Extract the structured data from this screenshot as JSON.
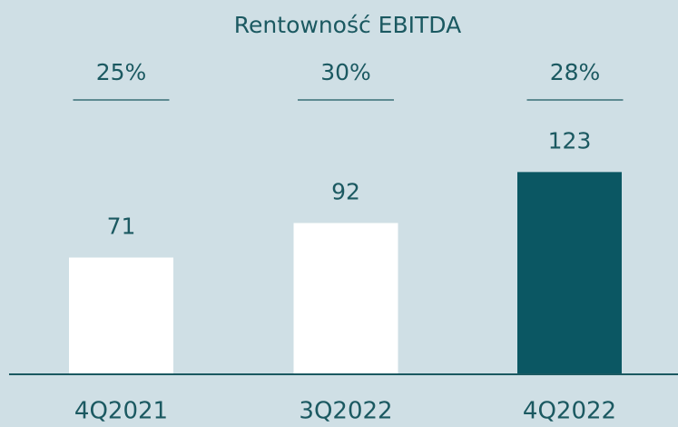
{
  "chart_data": {
    "type": "bar",
    "title": "Rentowność EBITDA",
    "categories": [
      "4Q2021",
      "3Q2022",
      "4Q2022"
    ],
    "values": [
      71,
      92,
      123
    ],
    "colors": [
      "#ffffff",
      "#ffffff",
      "#0b5763"
    ],
    "margins": [
      25,
      30,
      28
    ],
    "margin_labels": [
      "25%",
      "30%",
      "28%"
    ]
  }
}
